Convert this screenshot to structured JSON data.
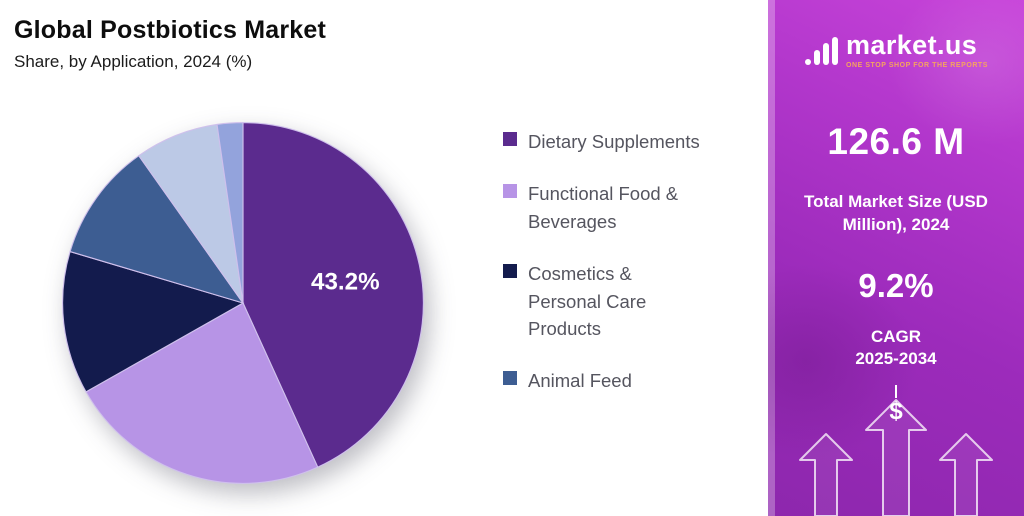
{
  "header": {
    "title": "Global Postbiotics Market",
    "subtitle": "Share, by Application, 2024 (%)"
  },
  "chart_data": {
    "type": "pie",
    "title": "Global Postbiotics Market Share, by Application, 2024 (%)",
    "unit": "%",
    "legend_position": "right",
    "segments": [
      {
        "label": "Dietary Supplements",
        "value": 43.2,
        "color": "#5b2b8e",
        "label_text": "43.2%",
        "in_legend": true
      },
      {
        "label": "Functional Food & Beverages",
        "value": 23.6,
        "color": "#b794e6",
        "in_legend": true
      },
      {
        "label": "Cosmetics & Personal Care Products",
        "value": 12.8,
        "color": "#131b4d",
        "in_legend": true
      },
      {
        "label": "Animal Feed",
        "value": 10.6,
        "color": "#3d5d92",
        "in_legend": true
      },
      {
        "label": "",
        "value": 7.5,
        "color": "#bcc9e6",
        "in_legend": false
      },
      {
        "label": "",
        "value": 2.3,
        "color": "#93a3dc",
        "in_legend": false
      }
    ]
  },
  "legend": {
    "items": [
      {
        "label": "Dietary Supplements",
        "color": "#5b2b8e"
      },
      {
        "label": "Functional Food & Beverages",
        "color": "#b794e6"
      },
      {
        "label": "Cosmetics & Personal Care Products",
        "color": "#131b4d"
      },
      {
        "label": "Animal Feed",
        "color": "#3d5d92"
      }
    ]
  },
  "side_panel": {
    "brand_name": "market.us",
    "brand_tagline": "ONE STOP SHOP FOR THE REPORTS",
    "market_size_value": "126.6 M",
    "market_size_label": "Total Market Size (USD Million), 2024",
    "cagr_value": "9.2%",
    "cagr_label": "CAGR",
    "cagr_period": "2025-2034",
    "dollar_symbol": "$",
    "accent_color": "#a42fc0"
  }
}
